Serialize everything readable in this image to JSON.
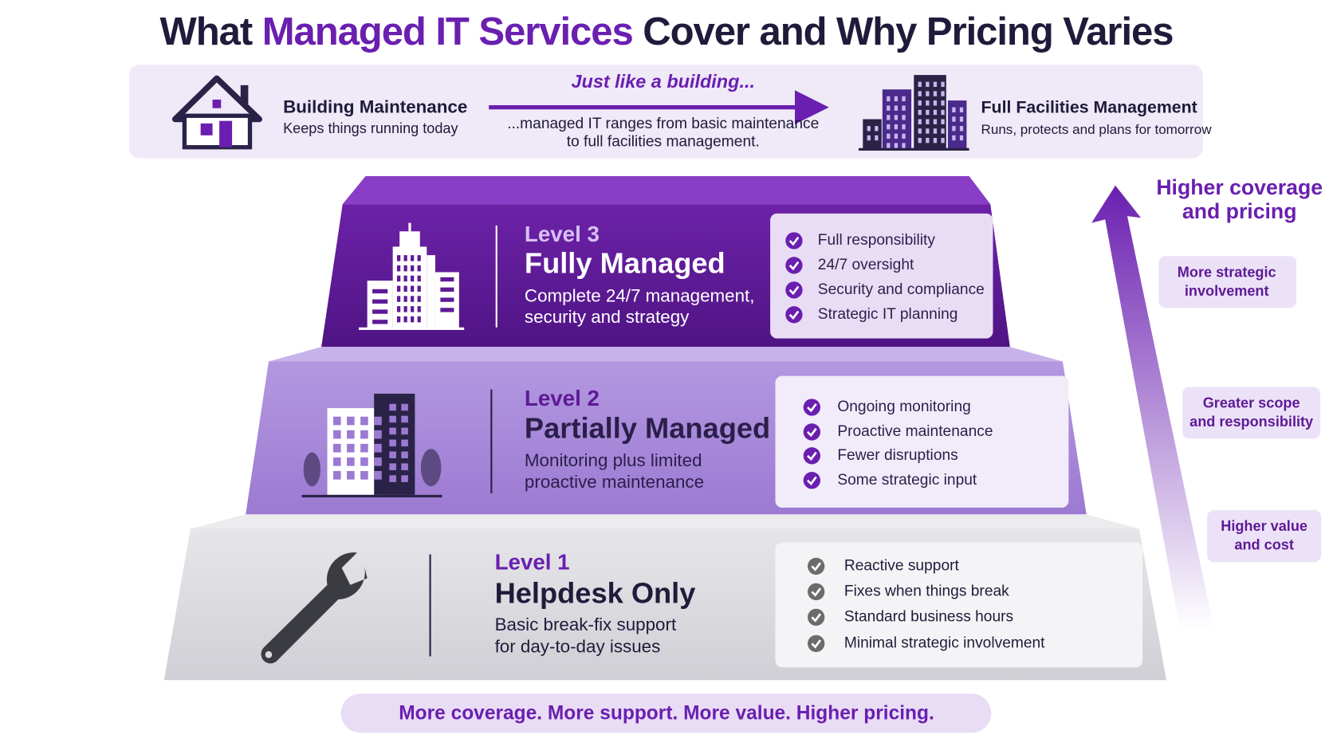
{
  "title": {
    "parts": [
      "What ",
      "Managed IT Services",
      " Cover and Why Pricing Varies"
    ]
  },
  "analogy": {
    "left": {
      "title": "Building Maintenance",
      "subtitle": "Keeps things running today"
    },
    "center": {
      "heading": "Just like a building...",
      "lines": [
        "...managed IT ranges from basic maintenance",
        "to full facilities management."
      ]
    },
    "right": {
      "title": "Full Facilities Management",
      "subtitle": "Runs, protects and plans for tomorrow"
    }
  },
  "levels": [
    {
      "level": "Level 3",
      "name": "Fully Managed",
      "description": [
        "Complete 24/7 management,",
        "security and strategy"
      ],
      "features": [
        "Full responsibility",
        "24/7 oversight",
        "Security and compliance",
        "Strategic IT planning"
      ]
    },
    {
      "level": "Level 2",
      "name": "Partially Managed",
      "description": [
        "Monitoring plus limited",
        "proactive maintenance"
      ],
      "features": [
        "Ongoing monitoring",
        "Proactive maintenance",
        "Fewer disruptions",
        "Some strategic input"
      ]
    },
    {
      "level": "Level 1",
      "name": "Helpdesk Only",
      "description": [
        "Basic break-fix support",
        "for day-to-day issues"
      ],
      "features": [
        "Reactive support",
        "Fixes when things break",
        "Standard business hours",
        "Minimal strategic involvement"
      ]
    }
  ],
  "side": {
    "heading": [
      "Higher coverage",
      "and pricing"
    ],
    "tags": [
      [
        "More strategic",
        "involvement"
      ],
      [
        "Greater scope",
        "and responsibility"
      ],
      [
        "Higher value",
        "and cost"
      ]
    ]
  },
  "footer": "More coverage. More support. More value. Higher pricing."
}
